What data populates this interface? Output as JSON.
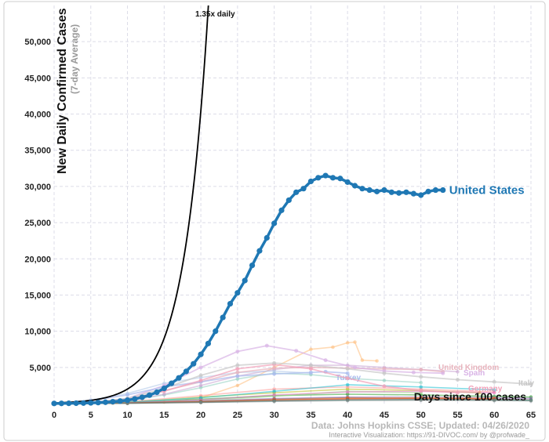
{
  "chart_data": {
    "type": "line",
    "title": "New Daily Confirmed Cases",
    "ylabel": "New Daily Confirmed Cases",
    "ylabel_sub": "(7-day Average)",
    "xlabel": "Days since 100 cases",
    "xlim": [
      0,
      65
    ],
    "ylim": [
      0,
      55000
    ],
    "x_ticks": [
      0,
      5,
      10,
      15,
      20,
      25,
      30,
      35,
      40,
      45,
      50,
      55,
      60,
      65
    ],
    "y_ticks": [
      5000,
      10000,
      15000,
      20000,
      25000,
      30000,
      35000,
      40000,
      45000,
      50000
    ],
    "y_tick_labels": [
      "5,000",
      "10,000",
      "15,000",
      "20,000",
      "25,000",
      "30,000",
      "35,000",
      "40,000",
      "45,000",
      "50,000"
    ],
    "x_tick_labels": [
      "0",
      "5",
      "10",
      "15",
      "20",
      "25",
      "30",
      "35",
      "40",
      "45",
      "50",
      "55",
      "60",
      "65"
    ],
    "source": "Data: Johns Hopkins CSSE; Updated: 04/26/2020",
    "credit": "Interactive Visualization: https://91-DIVOC.com/ by @profwade_",
    "reference_line": {
      "label": "1.35x daily",
      "base": 100,
      "growth_rate": 1.35,
      "color": "#000000"
    },
    "highlighted": {
      "name": "United States",
      "color": "#1f78b4",
      "x": [
        0,
        1,
        2,
        3,
        4,
        5,
        6,
        7,
        8,
        9,
        10,
        11,
        12,
        13,
        14,
        15,
        16,
        17,
        18,
        19,
        20,
        21,
        22,
        23,
        24,
        25,
        26,
        27,
        28,
        29,
        30,
        31,
        32,
        33,
        34,
        35,
        36,
        37,
        38,
        39,
        40,
        41,
        42,
        43,
        44,
        45,
        46,
        47,
        48,
        49,
        50,
        51,
        52,
        53
      ],
      "values": [
        20,
        30,
        40,
        55,
        75,
        100,
        140,
        190,
        260,
        350,
        470,
        640,
        870,
        1170,
        1570,
        2100,
        2800,
        3550,
        4450,
        5500,
        6800,
        8300,
        10000,
        11900,
        13800,
        15300,
        17000,
        19100,
        21100,
        22900,
        24900,
        26700,
        28100,
        29200,
        29700,
        30700,
        31200,
        31500,
        31200,
        31100,
        30600,
        30100,
        29700,
        29500,
        29300,
        29500,
        29200,
        29100,
        29200,
        29000,
        28800,
        29300,
        29500,
        29500
      ]
    },
    "labelled_series": [
      {
        "name": "United Kingdom",
        "color": "#e8b4bd",
        "x": [
          0,
          5,
          10,
          15,
          20,
          25,
          30,
          35,
          40,
          45,
          50,
          53
        ],
        "values": [
          20,
          100,
          500,
          1800,
          3000,
          4300,
          4900,
          5000,
          4900,
          4800,
          4700,
          4400
        ]
      },
      {
        "name": "Spain",
        "color": "#d9b3e6",
        "x": [
          0,
          5,
          10,
          15,
          20,
          25,
          29,
          33,
          37,
          41,
          45,
          49,
          53
        ],
        "values": [
          20,
          150,
          700,
          2500,
          5000,
          7200,
          8000,
          7300,
          6000,
          5000,
          4500,
          4300,
          4200
        ]
      },
      {
        "name": "Turkey",
        "color": "#aabbee",
        "x": [
          0,
          5,
          10,
          15,
          20,
          25,
          30,
          35,
          37,
          40
        ],
        "values": [
          30,
          400,
          1200,
          2300,
          3000,
          3800,
          4100,
          4300,
          4400,
          4200
        ]
      },
      {
        "name": "Germany",
        "color": "#f2a0b8",
        "x": [
          0,
          5,
          10,
          15,
          20,
          25,
          30,
          35,
          40,
          45,
          50,
          55
        ],
        "values": [
          20,
          150,
          600,
          1700,
          3200,
          4800,
          5400,
          4800,
          3500,
          2400,
          1800,
          1500
        ]
      },
      {
        "name": "Italy",
        "color": "#c8c8c8",
        "x": [
          0,
          5,
          10,
          15,
          20,
          25,
          30,
          35,
          40,
          45,
          50,
          55,
          60,
          65
        ],
        "values": [
          20,
          150,
          700,
          2100,
          3900,
          5300,
          5600,
          5300,
          4800,
          4200,
          3700,
          3300,
          3000,
          2700
        ]
      }
    ],
    "background_series": [
      {
        "color": "#ffbb78",
        "x": [
          0,
          8,
          15,
          20,
          25,
          30,
          35,
          38,
          40,
          41,
          42,
          44
        ],
        "values": [
          10,
          40,
          200,
          800,
          2500,
          5000,
          7500,
          7800,
          8400,
          8500,
          6000,
          5900
        ]
      },
      {
        "color": "#8fd0c0",
        "x": [
          0,
          5,
          10,
          15,
          20,
          25,
          30,
          35,
          40,
          45,
          50
        ],
        "values": [
          10,
          60,
          400,
          1200,
          2200,
          3400,
          4200,
          4000,
          3500,
          3200,
          2900
        ]
      },
      {
        "color": "#c7a0d0",
        "x": [
          0,
          5,
          10,
          15,
          20,
          25,
          30,
          35,
          40,
          45,
          50,
          55
        ],
        "values": [
          10,
          80,
          400,
          1300,
          2500,
          3800,
          4700,
          5300,
          5300,
          5000,
          4700,
          4400
        ]
      },
      {
        "color": "#bcbd22",
        "x": [
          0,
          10,
          20,
          30,
          40,
          50,
          58
        ],
        "values": [
          5,
          200,
          900,
          1500,
          2000,
          1800,
          1500
        ]
      },
      {
        "color": "#ff9896",
        "x": [
          0,
          10,
          20,
          30,
          40,
          50,
          60
        ],
        "values": [
          5,
          250,
          1100,
          2000,
          2300,
          2000,
          1600
        ]
      },
      {
        "color": "#2ca02c",
        "x": [
          0,
          10,
          20,
          30,
          40,
          50,
          60,
          65
        ],
        "values": [
          5,
          150,
          600,
          1100,
          1300,
          1200,
          1000,
          900
        ]
      },
      {
        "color": "#17becf",
        "x": [
          0,
          10,
          20,
          30,
          40,
          50,
          60
        ],
        "values": [
          5,
          180,
          800,
          1700,
          2600,
          2300,
          1900
        ]
      },
      {
        "color": "#98df8a",
        "x": [
          0,
          10,
          20,
          30,
          40,
          50
        ],
        "values": [
          5,
          100,
          400,
          1000,
          1700,
          1500
        ]
      },
      {
        "color": "#e377c2",
        "x": [
          0,
          10,
          20,
          30,
          40,
          50,
          60
        ],
        "values": [
          5,
          120,
          500,
          1200,
          1600,
          1700,
          1500
        ]
      },
      {
        "color": "#9467bd",
        "x": [
          0,
          10,
          20,
          30,
          40,
          50,
          60,
          65
        ],
        "values": [
          5,
          90,
          350,
          700,
          900,
          900,
          800,
          700
        ]
      },
      {
        "color": "#8c564b",
        "x": [
          0,
          10,
          20,
          30,
          40,
          50,
          60,
          65
        ],
        "values": [
          5,
          80,
          300,
          600,
          800,
          700,
          600,
          500
        ]
      },
      {
        "color": "#ff7f0e",
        "x": [
          0,
          10,
          20,
          30,
          40,
          50,
          60
        ],
        "values": [
          5,
          70,
          250,
          500,
          700,
          800,
          700
        ]
      },
      {
        "color": "#d62728",
        "x": [
          0,
          10,
          20,
          30,
          40,
          50,
          60
        ],
        "values": [
          5,
          60,
          200,
          450,
          600,
          650,
          600
        ]
      },
      {
        "color": "#1f9e89",
        "x": [
          0,
          10,
          20,
          30,
          40,
          50,
          60,
          65
        ],
        "values": [
          5,
          50,
          180,
          380,
          500,
          550,
          500,
          450
        ]
      },
      {
        "color": "#7f7f7f",
        "x": [
          0,
          10,
          20,
          30,
          40,
          50,
          60,
          65
        ],
        "values": [
          5,
          40,
          150,
          300,
          420,
          460,
          420,
          380
        ]
      },
      {
        "color": "#aec7e8",
        "x": [
          0,
          5,
          10,
          15,
          20,
          25,
          30,
          35
        ],
        "values": [
          30,
          500,
          1400,
          2800,
          3600,
          4300,
          4500,
          4200
        ]
      }
    ]
  }
}
